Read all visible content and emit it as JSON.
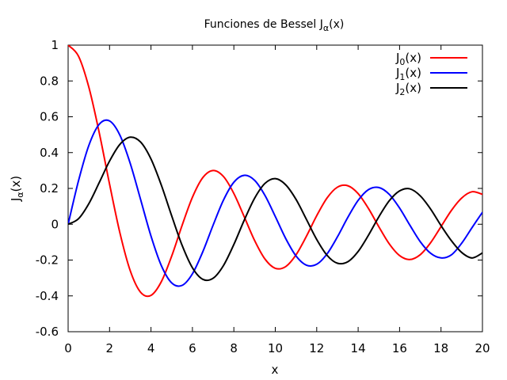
{
  "chart_data": {
    "type": "line",
    "title": "Funciones de Bessel J",
    "title_subscript": "α",
    "title_suffix": "(x)",
    "xlabel": "x",
    "ylabel": "J",
    "ylabel_subscript": "α",
    "ylabel_suffix": "(x)",
    "xlim": [
      0,
      20
    ],
    "ylim": [
      -0.6,
      1.0
    ],
    "xticks": [
      0,
      2,
      4,
      6,
      8,
      10,
      12,
      14,
      16,
      18,
      20
    ],
    "xtick_labels": [
      "0",
      "2",
      "4",
      "6",
      "8",
      "10",
      "12",
      "14",
      "16",
      "18",
      "20"
    ],
    "yticks": [
      -0.6,
      -0.4,
      -0.2,
      0,
      0.2,
      0.4,
      0.6,
      0.8,
      1.0
    ],
    "ytick_labels": [
      "-0.6",
      "-0.4",
      "-0.2",
      "0",
      "0.2",
      "0.4",
      "0.6",
      "0.8",
      "1"
    ],
    "grid": false,
    "legend_position": "top-right",
    "series": [
      {
        "name": "J0(x)",
        "label_base": "J",
        "label_sub": "0",
        "label_suffix": "(x)",
        "color": "#ff0000",
        "x": [
          0,
          0.5,
          1,
          1.5,
          2,
          2.5,
          3,
          3.5,
          4,
          4.5,
          5,
          5.5,
          6,
          6.5,
          7,
          7.5,
          8,
          8.5,
          9,
          9.5,
          10,
          10.5,
          11,
          11.5,
          12,
          12.5,
          13,
          13.5,
          14,
          14.5,
          15,
          15.5,
          16,
          16.5,
          17,
          17.5,
          18,
          18.5,
          19,
          19.5,
          20
        ],
        "y": [
          1.0,
          0.9385,
          0.7652,
          0.5118,
          0.2239,
          -0.0484,
          -0.2601,
          -0.3801,
          -0.3971,
          -0.3205,
          -0.1776,
          -0.0068,
          0.1506,
          0.2601,
          0.3001,
          0.2663,
          0.1717,
          0.0419,
          -0.0903,
          -0.1939,
          -0.2459,
          -0.2366,
          -0.1712,
          -0.0677,
          0.0477,
          0.1469,
          0.2069,
          0.215,
          0.1711,
          0.0875,
          -0.0142,
          -0.1092,
          -0.1749,
          -0.1969,
          -0.1699,
          -0.1029,
          -0.0134,
          0.0768,
          0.1466,
          0.1815,
          0.167
        ]
      },
      {
        "name": "J1(x)",
        "label_base": "J",
        "label_sub": "1",
        "label_suffix": "(x)",
        "color": "#0000ff",
        "x": [
          0,
          0.5,
          1,
          1.5,
          2,
          2.5,
          3,
          3.5,
          4,
          4.5,
          5,
          5.5,
          6,
          6.5,
          7,
          7.5,
          8,
          8.5,
          9,
          9.5,
          10,
          10.5,
          11,
          11.5,
          12,
          12.5,
          13,
          13.5,
          14,
          14.5,
          15,
          15.5,
          16,
          16.5,
          17,
          17.5,
          18,
          18.5,
          19,
          19.5,
          20
        ],
        "y": [
          0.0,
          0.2423,
          0.4401,
          0.5579,
          0.5767,
          0.4971,
          0.3391,
          0.1374,
          -0.066,
          -0.2311,
          -0.3276,
          -0.3414,
          -0.2767,
          -0.1538,
          -0.0047,
          0.1352,
          0.2346,
          0.2731,
          0.2453,
          0.1613,
          0.0435,
          -0.0789,
          -0.1768,
          -0.2284,
          -0.2234,
          -0.1655,
          -0.0703,
          0.038,
          0.1334,
          0.1934,
          0.2051,
          0.1672,
          0.0904,
          -0.0057,
          -0.0977,
          -0.1623,
          -0.188,
          -0.1711,
          -0.1057,
          -0.0184,
          0.0668
        ]
      },
      {
        "name": "J2(x)",
        "label_base": "J",
        "label_sub": "2",
        "label_suffix": "(x)",
        "color": "#000000",
        "x": [
          0,
          0.5,
          1,
          1.5,
          2,
          2.5,
          3,
          3.5,
          4,
          4.5,
          5,
          5.5,
          6,
          6.5,
          7,
          7.5,
          8,
          8.5,
          9,
          9.5,
          10,
          10.5,
          11,
          11.5,
          12,
          12.5,
          13,
          13.5,
          14,
          14.5,
          15,
          15.5,
          16,
          16.5,
          17,
          17.5,
          18,
          18.5,
          19,
          19.5,
          20
        ],
        "y": [
          0.0,
          0.0306,
          0.1149,
          0.2321,
          0.3528,
          0.4461,
          0.4861,
          0.4586,
          0.3641,
          0.2178,
          0.0466,
          -0.1173,
          -0.2429,
          -0.3074,
          -0.3014,
          -0.2303,
          -0.113,
          0.0223,
          0.1448,
          0.2278,
          0.2546,
          0.2204,
          0.139,
          0.028,
          -0.0849,
          -0.1734,
          -0.2177,
          -0.2094,
          -0.152,
          -0.0609,
          0.0416,
          0.1308,
          0.1863,
          0.1976,
          0.1584,
          0.0844,
          -0.0075,
          -0.0917,
          -0.1578,
          -0.1882,
          -0.1603
        ]
      }
    ]
  }
}
